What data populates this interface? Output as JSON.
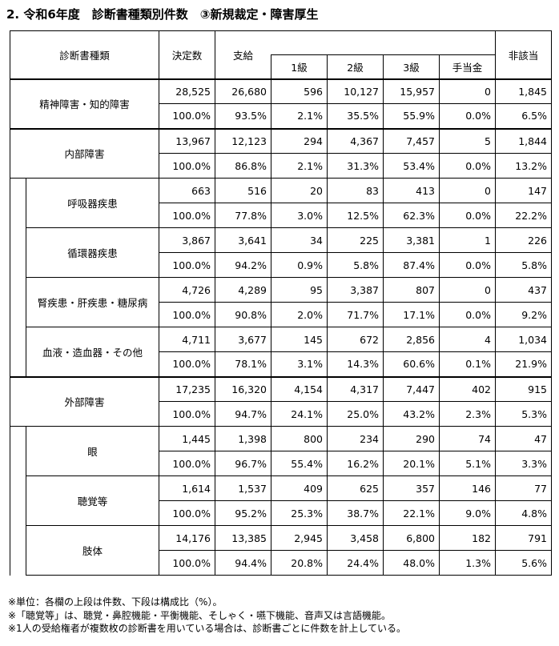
{
  "title": "2. 令和6年度　診断書種類別件数　③新規裁定・障害厚生",
  "table": {
    "header": {
      "type": "診断書種類",
      "decided": "決定数",
      "granted": "支給",
      "grades": [
        "1級",
        "2級",
        "3級",
        "手当金"
      ],
      "not_applicable": "非該当"
    },
    "rows": [
      {
        "label": "精神障害・知的障害",
        "counts": [
          "28,525",
          "26,680",
          "596",
          "10,127",
          "15,957",
          "0",
          "1,845"
        ],
        "percents": [
          "100.0%",
          "93.5%",
          "2.1%",
          "35.5%",
          "55.9%",
          "0.0%",
          "6.5%"
        ]
      },
      {
        "label": "内部障害",
        "counts": [
          "13,967",
          "12,123",
          "294",
          "4,367",
          "7,457",
          "5",
          "1,844"
        ],
        "percents": [
          "100.0%",
          "86.8%",
          "2.1%",
          "31.3%",
          "53.4%",
          "0.0%",
          "13.2%"
        ],
        "children": [
          {
            "label": "呼吸器疾患",
            "counts": [
              "663",
              "516",
              "20",
              "83",
              "413",
              "0",
              "147"
            ],
            "percents": [
              "100.0%",
              "77.8%",
              "3.0%",
              "12.5%",
              "62.3%",
              "0.0%",
              "22.2%"
            ]
          },
          {
            "label": "循環器疾患",
            "counts": [
              "3,867",
              "3,641",
              "34",
              "225",
              "3,381",
              "1",
              "226"
            ],
            "percents": [
              "100.0%",
              "94.2%",
              "0.9%",
              "5.8%",
              "87.4%",
              "0.0%",
              "5.8%"
            ]
          },
          {
            "label": "腎疾患・肝疾患・糖尿病",
            "counts": [
              "4,726",
              "4,289",
              "95",
              "3,387",
              "807",
              "0",
              "437"
            ],
            "percents": [
              "100.0%",
              "90.8%",
              "2.0%",
              "71.7%",
              "17.1%",
              "0.0%",
              "9.2%"
            ]
          },
          {
            "label": "血液・造血器・その他",
            "counts": [
              "4,711",
              "3,677",
              "145",
              "672",
              "2,856",
              "4",
              "1,034"
            ],
            "percents": [
              "100.0%",
              "78.1%",
              "3.1%",
              "14.3%",
              "60.6%",
              "0.1%",
              "21.9%"
            ]
          }
        ]
      },
      {
        "label": "外部障害",
        "counts": [
          "17,235",
          "16,320",
          "4,154",
          "4,317",
          "7,447",
          "402",
          "915"
        ],
        "percents": [
          "100.0%",
          "94.7%",
          "24.1%",
          "25.0%",
          "43.2%",
          "2.3%",
          "5.3%"
        ],
        "children": [
          {
            "label": "眼",
            "counts": [
              "1,445",
              "1,398",
              "800",
              "234",
              "290",
              "74",
              "47"
            ],
            "percents": [
              "100.0%",
              "96.7%",
              "55.4%",
              "16.2%",
              "20.1%",
              "5.1%",
              "3.3%"
            ]
          },
          {
            "label": "聴覚等",
            "counts": [
              "1,614",
              "1,537",
              "409",
              "625",
              "357",
              "146",
              "77"
            ],
            "percents": [
              "100.0%",
              "95.2%",
              "25.3%",
              "38.7%",
              "22.1%",
              "9.0%",
              "4.8%"
            ]
          },
          {
            "label": "肢体",
            "counts": [
              "14,176",
              "13,385",
              "2,945",
              "3,458",
              "6,800",
              "182",
              "791"
            ],
            "percents": [
              "100.0%",
              "94.4%",
              "20.8%",
              "24.4%",
              "48.0%",
              "1.3%",
              "5.6%"
            ]
          }
        ]
      }
    ]
  },
  "notes": [
    "※単位：各欄の上段は件数、下段は構成比（%）。",
    "※「聴覚等」は、聴覚・鼻腔機能・平衡機能、そしゃく・嚥下機能、音声又は言語機能。",
    "※1人の受給権者が複数枚の診断書を用いている場合は、診断書ごとに件数を計上している。"
  ]
}
